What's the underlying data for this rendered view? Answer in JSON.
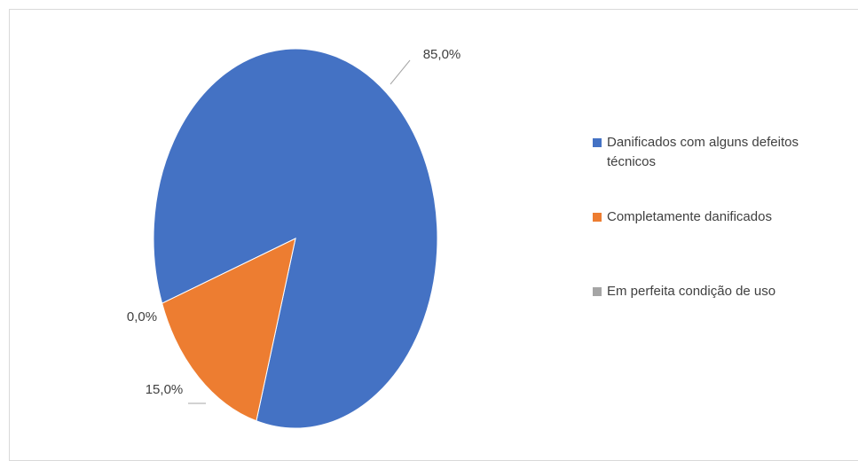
{
  "chart_data": {
    "type": "pie",
    "categories": [
      "Danificados com alguns defeitos técnicos",
      "Completamente danificados",
      "Em perfeita condição de uso"
    ],
    "values": [
      85,
      15,
      0
    ],
    "value_labels": [
      "85,0%",
      "15,0%",
      "0,0%"
    ],
    "colors": [
      "#4472c4",
      "#ed7d31",
      "#a5a5a5"
    ],
    "legend": "right"
  }
}
